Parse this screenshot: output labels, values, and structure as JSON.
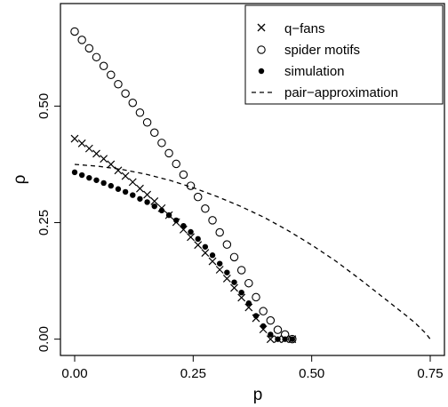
{
  "chart_data": {
    "type": "scatter",
    "title": "",
    "xlabel": "p",
    "ylabel": "ρ",
    "xlim": [
      -0.03,
      0.78
    ],
    "ylim": [
      -0.035,
      0.72
    ],
    "xticks": [
      0.0,
      0.25,
      0.5,
      0.75
    ],
    "xtick_labels": [
      "0.00",
      "0.25",
      "0.50",
      "0.75"
    ],
    "yticks": [
      0.0,
      0.25,
      0.5
    ],
    "ytick_labels": [
      "0.00",
      "0.25",
      "0.50"
    ],
    "grid": false,
    "legend_position": "top-right",
    "series": [
      {
        "name": "q−fans",
        "marker": "cross",
        "x": [
          0.0,
          0.0153,
          0.0306,
          0.0459,
          0.0612,
          0.0765,
          0.0918,
          0.1071,
          0.1224,
          0.1377,
          0.153,
          0.1683,
          0.1836,
          0.1989,
          0.2142,
          0.2295,
          0.2448,
          0.2601,
          0.2754,
          0.2907,
          0.306,
          0.3213,
          0.3366,
          0.3519,
          0.3672,
          0.3825,
          0.3978,
          0.4131,
          0.4284,
          0.4437,
          0.459
        ],
        "y": [
          0.43,
          0.42,
          0.409,
          0.398,
          0.387,
          0.375,
          0.362,
          0.35,
          0.337,
          0.323,
          0.31,
          0.296,
          0.281,
          0.266,
          0.251,
          0.235,
          0.219,
          0.202,
          0.185,
          0.167,
          0.149,
          0.13,
          0.11,
          0.089,
          0.068,
          0.045,
          0.021,
          0.0,
          0.0,
          0.0,
          0.0
        ]
      },
      {
        "name": "spider motifs",
        "marker": "open-circle",
        "x": [
          0.0,
          0.0153,
          0.0306,
          0.0459,
          0.0612,
          0.0765,
          0.0918,
          0.1071,
          0.1224,
          0.1377,
          0.153,
          0.1683,
          0.1836,
          0.1989,
          0.2142,
          0.2295,
          0.2448,
          0.2601,
          0.2754,
          0.2907,
          0.306,
          0.3213,
          0.3366,
          0.3519,
          0.3672,
          0.3825,
          0.3978,
          0.4131,
          0.4284,
          0.4437,
          0.459
        ],
        "y": [
          0.66,
          0.642,
          0.624,
          0.605,
          0.586,
          0.567,
          0.547,
          0.527,
          0.507,
          0.486,
          0.465,
          0.443,
          0.421,
          0.399,
          0.376,
          0.353,
          0.329,
          0.305,
          0.28,
          0.255,
          0.229,
          0.203,
          0.176,
          0.148,
          0.12,
          0.09,
          0.06,
          0.04,
          0.02,
          0.01,
          0.0
        ]
      },
      {
        "name": "simulation",
        "marker": "filled-circle",
        "x": [
          0.0,
          0.0153,
          0.0306,
          0.0459,
          0.0612,
          0.0765,
          0.0918,
          0.1071,
          0.1224,
          0.1377,
          0.153,
          0.1683,
          0.1836,
          0.1989,
          0.2142,
          0.2295,
          0.2448,
          0.2601,
          0.2754,
          0.2907,
          0.306,
          0.3213,
          0.3366,
          0.3519,
          0.3672,
          0.3825,
          0.3978,
          0.4131,
          0.4284,
          0.4437,
          0.459
        ],
        "y": [
          0.358,
          0.352,
          0.346,
          0.341,
          0.335,
          0.329,
          0.322,
          0.316,
          0.309,
          0.301,
          0.294,
          0.285,
          0.276,
          0.266,
          0.255,
          0.243,
          0.23,
          0.215,
          0.198,
          0.18,
          0.162,
          0.143,
          0.122,
          0.1,
          0.077,
          0.05,
          0.028,
          0.01,
          0.0,
          0.0,
          0.0
        ]
      },
      {
        "name": "pair−approximation",
        "marker": "dashed-line",
        "x": [
          0.0,
          0.05,
          0.1,
          0.15,
          0.2,
          0.25,
          0.3,
          0.35,
          0.4,
          0.45,
          0.5,
          0.55,
          0.6,
          0.65,
          0.7,
          0.72,
          0.74,
          0.75
        ],
        "y": [
          0.375,
          0.371,
          0.364,
          0.354,
          0.341,
          0.325,
          0.306,
          0.285,
          0.261,
          0.233,
          0.202,
          0.168,
          0.13,
          0.09,
          0.05,
          0.033,
          0.013,
          0.0
        ]
      }
    ]
  }
}
